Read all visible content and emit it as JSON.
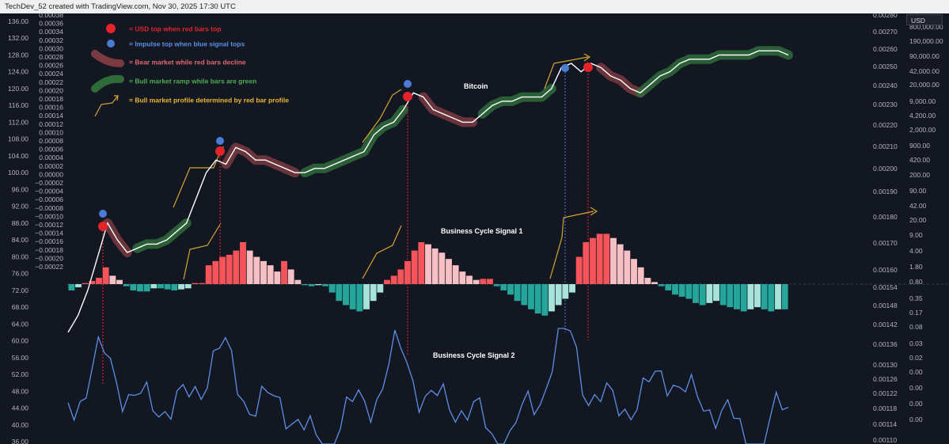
{
  "header": {
    "attribution": "TechDev_52 created with TradingView.com, Nov 30, 2025 17:30 UTC"
  },
  "usd_badge": "USD",
  "colors": {
    "background": "#131722",
    "usd_top": "#e3242b",
    "impulse_top": "#4a7cd6",
    "bear_band": "#7a3a40",
    "bull_band": "#2f6b39",
    "profile_arrow": "#d6a630",
    "bar_red": "#f5545b",
    "bar_pink": "#f7c0c4",
    "bar_teal": "#26a69a",
    "bar_lightteal": "#a7e3d8",
    "signal2_line": "#5b8fe6"
  },
  "legend": [
    {
      "icon": "red-dot-icon",
      "text": "= USD top when red bars top",
      "color": "#e3242b"
    },
    {
      "icon": "blue-dot-icon",
      "text": "= Impulse top when blue signal tops",
      "color": "#5b8fe6"
    },
    {
      "icon": "bear-band-icon",
      "text": "= Bear market while red bars decline",
      "color": "#e06a72"
    },
    {
      "icon": "bull-band-icon",
      "text": "= Bull market ramp while bars are green",
      "color": "#4caf50"
    },
    {
      "icon": "arrow-icon",
      "text": "= Bull market profile determined by red bar profile",
      "color": "#e8b830"
    }
  ],
  "chart_data": {
    "type": "line",
    "annotations": [
      "Bitcoin",
      "Business Cycle Signal 1",
      "Business Cycle Signal 2"
    ],
    "left_axis_outer": {
      "ticks": [
        "136.00",
        "132.00",
        "128.00",
        "124.00",
        "120.00",
        "116.00",
        "112.00",
        "108.00",
        "104.00",
        "100.00",
        "96.00",
        "92.00",
        "88.00",
        "84.00",
        "80.00",
        "76.00",
        "72.00",
        "68.00",
        "64.00",
        "60.00",
        "56.00",
        "52.00",
        "48.00",
        "44.00",
        "40.00",
        "36.00"
      ]
    },
    "left_axis_inner": {
      "ticks": [
        "0.00038",
        "0.00036",
        "0.00034",
        "0.00032",
        "0.00030",
        "0.00028",
        "0.00026",
        "0.00024",
        "0.00022",
        "0.00020",
        "0.00018",
        "0.00016",
        "0.00014",
        "0.00012",
        "0.00010",
        "0.00008",
        "0.00006",
        "0.00004",
        "0.00002",
        "0.00000",
        "−0.00002",
        "−0.00004",
        "−0.00006",
        "−0.00008",
        "−0.00010",
        "−0.00012",
        "−0.00014",
        "−0.00016",
        "−0.00018",
        "−0.00020",
        "−0.00022"
      ]
    },
    "right_axis_inner": {
      "ticks": [
        "0.00280",
        "0.00270",
        "0.00260",
        "0.00250",
        "0.00240",
        "0.00230",
        "0.00220",
        "0.00210",
        "0.00200",
        "0.00190",
        "0.00180",
        "0.00170",
        "0.00160",
        "0.00154",
        "0.00148",
        "0.00142",
        "0.00136",
        "0.00130",
        "0.00126",
        "0.00122",
        "0.00118",
        "0.00114",
        "0.00110"
      ]
    },
    "right_axis_outer": {
      "ticks": [
        "USD",
        "800,000.00",
        "190,000.00",
        "90,000.00",
        "42,000.00",
        "20,000.00",
        "9,000.00",
        "4,200.00",
        "2,000.00",
        "900.00",
        "420.00",
        "200.00",
        "90.00",
        "42.00",
        "20.00",
        "9.00",
        "4.00",
        "1.80",
        "0.80",
        "0.35",
        "0.17",
        "0.08",
        "0.03",
        "0.02",
        "0.00",
        "0.00",
        "0.00",
        "0.00"
      ]
    },
    "bitcoin_price": [
      62,
      66,
      72,
      80,
      88,
      84,
      81,
      82,
      83,
      83,
      84,
      86,
      88,
      94,
      100,
      103,
      102,
      106,
      105,
      103,
      103,
      102,
      101,
      100,
      100,
      101,
      101,
      102,
      103,
      104,
      105,
      109,
      111,
      112,
      115,
      119,
      118,
      115,
      114,
      113,
      112,
      112,
      114,
      116,
      117,
      117,
      118,
      118,
      118,
      120,
      125,
      126,
      124,
      126,
      125,
      123,
      122,
      120,
      119,
      121,
      123,
      124,
      126,
      127,
      127,
      127,
      128,
      128,
      128,
      128,
      129,
      129,
      129,
      128
    ],
    "signal1_bars": [
      -3,
      -1.5,
      0.5,
      1.5,
      3,
      8,
      4,
      2,
      -1,
      -3,
      -3.5,
      -3.5,
      -2,
      -2,
      -2.5,
      -3,
      -2.5,
      -2,
      0.5,
      0.5,
      9,
      11,
      13,
      14,
      16,
      20,
      16,
      13,
      11,
      9,
      6,
      11,
      7,
      2,
      -0.5,
      -1,
      -0.5,
      -1,
      -4,
      -8,
      -10,
      -12,
      -13,
      -12,
      -8,
      -4,
      2,
      4,
      7,
      11,
      16,
      20,
      19,
      17,
      15,
      12,
      9,
      6,
      4,
      2,
      2.5,
      2.5,
      -1,
      -3,
      -5,
      -8,
      -10,
      -12,
      -14,
      -15,
      -13,
      -10,
      -7,
      -4,
      13,
      20,
      22,
      24,
      24,
      22,
      19,
      16,
      12,
      8,
      3,
      1,
      -1,
      -3,
      -5,
      -6,
      -7,
      -9,
      -10,
      -9,
      -8,
      -10,
      -11,
      -12,
      -13,
      -12,
      -11,
      -12,
      -13,
      -12,
      -12
    ]
  }
}
